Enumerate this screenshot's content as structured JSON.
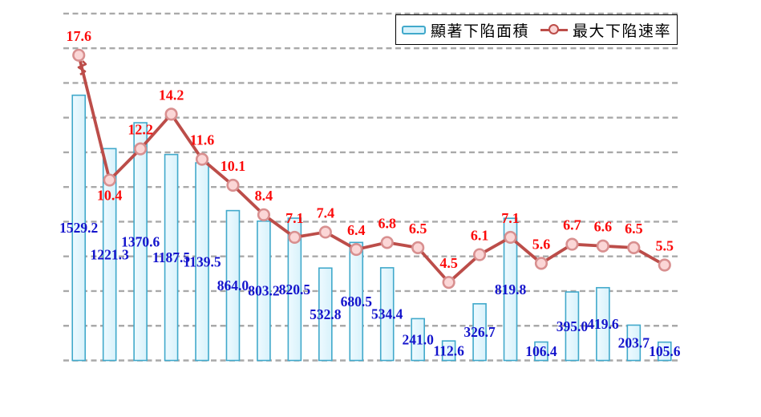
{
  "legend": {
    "area_label": "顯著下陷面積",
    "rate_label": "最大下陷速率"
  },
  "chart_data": {
    "type": "combo",
    "x_axis_labels": "none visible",
    "series": [
      {
        "name": "顯著下陷面積",
        "type": "bar",
        "axis": "left",
        "values": [
          1529.2,
          1221.3,
          1370.6,
          1187.5,
          1139.5,
          864.0,
          803.2,
          820.5,
          532.8,
          680.5,
          534.4,
          241.0,
          112.6,
          326.7,
          819.8,
          106.4,
          395.0,
          419.6,
          203.7,
          105.6
        ]
      },
      {
        "name": "最大下陷速率",
        "type": "line",
        "axis": "right",
        "values": [
          17.6,
          10.4,
          12.2,
          14.2,
          11.6,
          10.1,
          8.4,
          7.1,
          7.4,
          6.4,
          6.8,
          6.5,
          4.5,
          6.1,
          7.1,
          5.6,
          6.7,
          6.6,
          6.5,
          5.5
        ],
        "break_symbol_after_first_point": true,
        "labels_below_marker_indices": [
          1
        ]
      }
    ],
    "left_axis": {
      "min": 0,
      "max": 2000,
      "step": 200,
      "tick_labels_visible": false
    },
    "right_axis": {
      "min": 0,
      "max": 20,
      "step": 2,
      "tick_labels_visible": false
    },
    "grid": {
      "horizontal": true,
      "style": "dashed"
    },
    "legend_position": "top-right",
    "colors": {
      "bar_fill": "#d8f2fb",
      "bar_fill_light": "#eefaff",
      "bar_border": "#41a9cb",
      "bar_label": "#1414cc",
      "line": "#bc4d49",
      "marker_fill": "#fbd6d6",
      "marker_ring": "#d88f8f",
      "line_label": "#fb0a0a",
      "gridline": "#a9a9a9"
    }
  }
}
